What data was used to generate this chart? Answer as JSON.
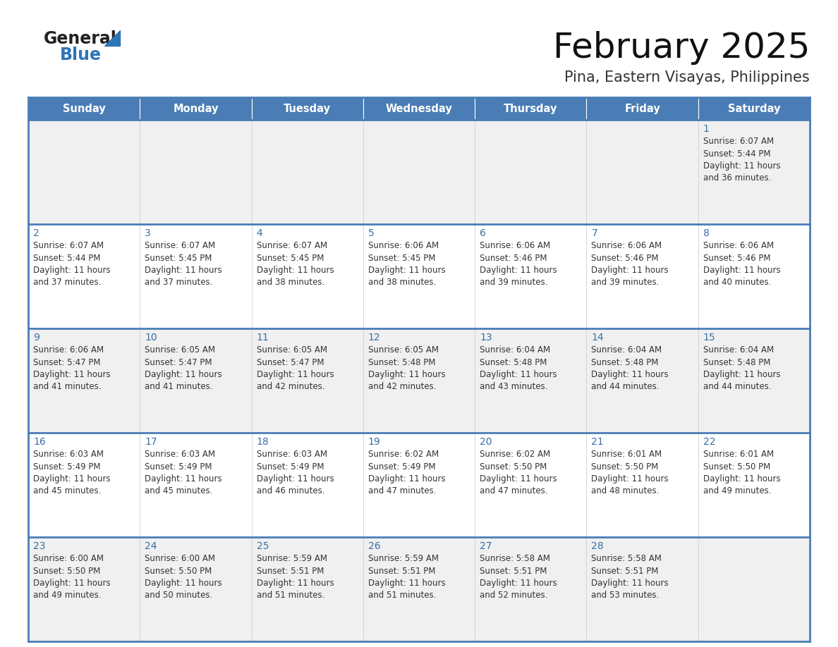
{
  "title": "February 2025",
  "subtitle": "Pina, Eastern Visayas, Philippines",
  "days_of_week": [
    "Sunday",
    "Monday",
    "Tuesday",
    "Wednesday",
    "Thursday",
    "Friday",
    "Saturday"
  ],
  "header_bg": "#4a7db5",
  "header_text": "#ffffff",
  "cell_bg_odd": "#f0f0f0",
  "cell_bg_even": "#ffffff",
  "day_number_color": "#3a6ea5",
  "text_color": "#333333",
  "border_color": "#4a7db5",
  "logo_general_color": "#222222",
  "logo_blue_color": "#2e75b6",
  "logo_triangle_color": "#2e75b6",
  "calendar_data": [
    [
      null,
      null,
      null,
      null,
      null,
      null,
      {
        "day": 1,
        "sunrise": "6:07 AM",
        "sunset": "5:44 PM",
        "daylight": "11 hours and 36 minutes."
      }
    ],
    [
      {
        "day": 2,
        "sunrise": "6:07 AM",
        "sunset": "5:44 PM",
        "daylight": "11 hours and 37 minutes."
      },
      {
        "day": 3,
        "sunrise": "6:07 AM",
        "sunset": "5:45 PM",
        "daylight": "11 hours and 37 minutes."
      },
      {
        "day": 4,
        "sunrise": "6:07 AM",
        "sunset": "5:45 PM",
        "daylight": "11 hours and 38 minutes."
      },
      {
        "day": 5,
        "sunrise": "6:06 AM",
        "sunset": "5:45 PM",
        "daylight": "11 hours and 38 minutes."
      },
      {
        "day": 6,
        "sunrise": "6:06 AM",
        "sunset": "5:46 PM",
        "daylight": "11 hours and 39 minutes."
      },
      {
        "day": 7,
        "sunrise": "6:06 AM",
        "sunset": "5:46 PM",
        "daylight": "11 hours and 39 minutes."
      },
      {
        "day": 8,
        "sunrise": "6:06 AM",
        "sunset": "5:46 PM",
        "daylight": "11 hours and 40 minutes."
      }
    ],
    [
      {
        "day": 9,
        "sunrise": "6:06 AM",
        "sunset": "5:47 PM",
        "daylight": "11 hours and 41 minutes."
      },
      {
        "day": 10,
        "sunrise": "6:05 AM",
        "sunset": "5:47 PM",
        "daylight": "11 hours and 41 minutes."
      },
      {
        "day": 11,
        "sunrise": "6:05 AM",
        "sunset": "5:47 PM",
        "daylight": "11 hours and 42 minutes."
      },
      {
        "day": 12,
        "sunrise": "6:05 AM",
        "sunset": "5:48 PM",
        "daylight": "11 hours and 42 minutes."
      },
      {
        "day": 13,
        "sunrise": "6:04 AM",
        "sunset": "5:48 PM",
        "daylight": "11 hours and 43 minutes."
      },
      {
        "day": 14,
        "sunrise": "6:04 AM",
        "sunset": "5:48 PM",
        "daylight": "11 hours and 44 minutes."
      },
      {
        "day": 15,
        "sunrise": "6:04 AM",
        "sunset": "5:48 PM",
        "daylight": "11 hours and 44 minutes."
      }
    ],
    [
      {
        "day": 16,
        "sunrise": "6:03 AM",
        "sunset": "5:49 PM",
        "daylight": "11 hours and 45 minutes."
      },
      {
        "day": 17,
        "sunrise": "6:03 AM",
        "sunset": "5:49 PM",
        "daylight": "11 hours and 45 minutes."
      },
      {
        "day": 18,
        "sunrise": "6:03 AM",
        "sunset": "5:49 PM",
        "daylight": "11 hours and 46 minutes."
      },
      {
        "day": 19,
        "sunrise": "6:02 AM",
        "sunset": "5:49 PM",
        "daylight": "11 hours and 47 minutes."
      },
      {
        "day": 20,
        "sunrise": "6:02 AM",
        "sunset": "5:50 PM",
        "daylight": "11 hours and 47 minutes."
      },
      {
        "day": 21,
        "sunrise": "6:01 AM",
        "sunset": "5:50 PM",
        "daylight": "11 hours and 48 minutes."
      },
      {
        "day": 22,
        "sunrise": "6:01 AM",
        "sunset": "5:50 PM",
        "daylight": "11 hours and 49 minutes."
      }
    ],
    [
      {
        "day": 23,
        "sunrise": "6:00 AM",
        "sunset": "5:50 PM",
        "daylight": "11 hours and 49 minutes."
      },
      {
        "day": 24,
        "sunrise": "6:00 AM",
        "sunset": "5:50 PM",
        "daylight": "11 hours and 50 minutes."
      },
      {
        "day": 25,
        "sunrise": "5:59 AM",
        "sunset": "5:51 PM",
        "daylight": "11 hours and 51 minutes."
      },
      {
        "day": 26,
        "sunrise": "5:59 AM",
        "sunset": "5:51 PM",
        "daylight": "11 hours and 51 minutes."
      },
      {
        "day": 27,
        "sunrise": "5:58 AM",
        "sunset": "5:51 PM",
        "daylight": "11 hours and 52 minutes."
      },
      {
        "day": 28,
        "sunrise": "5:58 AM",
        "sunset": "5:51 PM",
        "daylight": "11 hours and 53 minutes."
      },
      null
    ]
  ]
}
